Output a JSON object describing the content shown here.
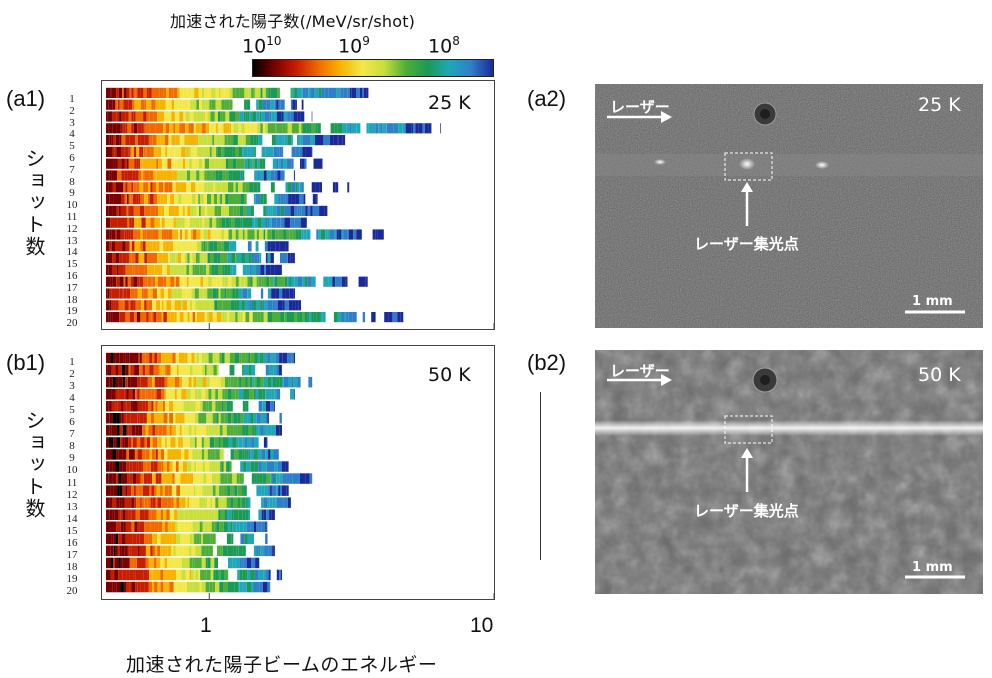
{
  "colorbar": {
    "title": "加速された陽子数(/MeV/sr/shot)",
    "ticks": [
      {
        "base": "10",
        "exp": "10"
      },
      {
        "base": "10",
        "exp": "9"
      },
      {
        "base": "10",
        "exp": "8"
      }
    ],
    "colors": [
      "#000000",
      "#7a0000",
      "#c81e00",
      "#f06a00",
      "#f6b300",
      "#f2e84a",
      "#c8df3c",
      "#4fae39",
      "#1a9a55",
      "#1fa7b8",
      "#2f7fc8",
      "#1b2a9a"
    ]
  },
  "panels": {
    "a1": {
      "label": "(a1)",
      "temp": "25 K"
    },
    "b1": {
      "label": "(b1)",
      "temp": "50 K"
    },
    "a2": {
      "label": "(a2)",
      "temp": "25 K",
      "laser": "レーザー",
      "focus": "レーザー集光点",
      "scale": "1 mm"
    },
    "b2": {
      "label": "(b2)",
      "temp": "50 K",
      "laser": "レーザー",
      "focus": "レーザー集光点",
      "scale": "1 mm"
    }
  },
  "ylabel": "ショット数",
  "xlabel": "加速された陽子ビームのエネルギー",
  "xticks": [
    "1",
    "10"
  ],
  "chart_data": [
    {
      "type": "heatmap",
      "panel": "a1",
      "temperature": "25 K",
      "x_scale": "log",
      "xlim": [
        0.42,
        10
      ],
      "x_unit": "MeV",
      "rows": [
        "1",
        "2",
        "3",
        "4",
        "5",
        "6",
        "7",
        "8",
        "9",
        "10",
        "11",
        "12",
        "13",
        "14",
        "15",
        "16",
        "17",
        "18",
        "19",
        "20"
      ],
      "max_energy": [
        3.8,
        2.2,
        2.3,
        6.5,
        3.0,
        2.3,
        2.5,
        2.0,
        3.1,
        2.4,
        2.6,
        2.2,
        4.1,
        1.9,
        2.0,
        1.8,
        3.6,
        2.0,
        2.1,
        4.8
      ]
    },
    {
      "type": "heatmap",
      "panel": "b1",
      "temperature": "50 K",
      "x_scale": "log",
      "xlim": [
        0.42,
        10
      ],
      "x_unit": "MeV",
      "rows": [
        "1",
        "2",
        "3",
        "4",
        "5",
        "6",
        "7",
        "8",
        "9",
        "10",
        "11",
        "12",
        "13",
        "14",
        "15",
        "16",
        "17",
        "18",
        "19",
        "20"
      ],
      "max_energy": [
        2.0,
        1.8,
        2.3,
        2.0,
        1.7,
        1.8,
        1.9,
        1.6,
        1.8,
        1.9,
        2.3,
        1.9,
        2.0,
        1.7,
        1.6,
        1.6,
        1.7,
        1.5,
        1.8,
        1.7
      ]
    }
  ]
}
